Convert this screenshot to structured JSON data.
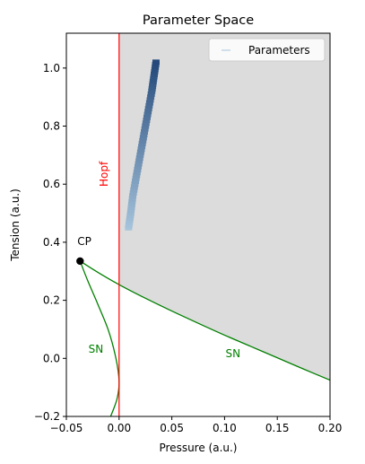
{
  "chart_data": {
    "type": "line",
    "title": "Parameter Space",
    "xlabel": "Pressure (a.u.)",
    "ylabel": "Tension (a.u.)",
    "xlim": [
      -0.05,
      0.2
    ],
    "ylim": [
      -0.2,
      1.12
    ],
    "xticks": [
      -0.05,
      0.0,
      0.05,
      0.1,
      0.15,
      0.2
    ],
    "xtick_labels": [
      "−0.05",
      "0.00",
      "0.05",
      "0.10",
      "0.15",
      "0.20"
    ],
    "yticks": [
      -0.2,
      0.0,
      0.2,
      0.4,
      0.6,
      0.8,
      1.0
    ],
    "ytick_labels": [
      "−0.2",
      "0.0",
      "0.2",
      "0.4",
      "0.6",
      "0.8",
      "1.0"
    ],
    "grid": false,
    "legend": {
      "placement": "top-right",
      "entries": [
        "Parameters"
      ]
    },
    "shaded_region": {
      "color": "#dcdcdc",
      "x_min": 0.0,
      "lower_boundary": "sn_upper_branch"
    },
    "hopf_line": {
      "x": 0.0,
      "color": "#ff0000",
      "label": "Hopf"
    },
    "cusp_point": {
      "x": -0.037,
      "y": 0.335,
      "label": "CP",
      "color": "#000000"
    },
    "sn_curves": {
      "label": "SN",
      "color": "#008000",
      "upper_branch": [
        [
          -0.037,
          0.335
        ],
        [
          -0.02,
          0.296
        ],
        [
          0.0,
          0.254
        ],
        [
          0.025,
          0.207
        ],
        [
          0.05,
          0.163
        ],
        [
          0.075,
          0.121
        ],
        [
          0.1,
          0.08
        ],
        [
          0.125,
          0.041
        ],
        [
          0.15,
          0.002
        ],
        [
          0.175,
          -0.037
        ],
        [
          0.2,
          -0.075
        ]
      ],
      "lower_branch": [
        [
          -0.037,
          0.335
        ],
        [
          -0.03,
          0.27
        ],
        [
          -0.02,
          0.185
        ],
        [
          -0.01,
          0.095
        ],
        [
          -0.003,
          0.0
        ],
        [
          0.0,
          -0.08
        ],
        [
          -0.002,
          -0.14
        ],
        [
          -0.008,
          -0.2
        ]
      ]
    },
    "series": [
      {
        "name": "Parameters",
        "colormap": [
          "#a6c4dc",
          "#24497a"
        ],
        "points": [
          [
            0.009,
            0.45
          ],
          [
            0.011,
            0.5
          ],
          [
            0.013,
            0.56
          ],
          [
            0.016,
            0.62
          ],
          [
            0.019,
            0.68
          ],
          [
            0.022,
            0.74
          ],
          [
            0.025,
            0.8
          ],
          [
            0.028,
            0.86
          ],
          [
            0.031,
            0.92
          ],
          [
            0.033,
            0.97
          ],
          [
            0.035,
            1.02
          ]
        ]
      }
    ],
    "annotations": [
      {
        "text": "SN",
        "x": -0.022,
        "y": 0.03,
        "color": "#008000"
      },
      {
        "text": "SN",
        "x": 0.108,
        "y": 0.015,
        "color": "#008000"
      }
    ]
  }
}
